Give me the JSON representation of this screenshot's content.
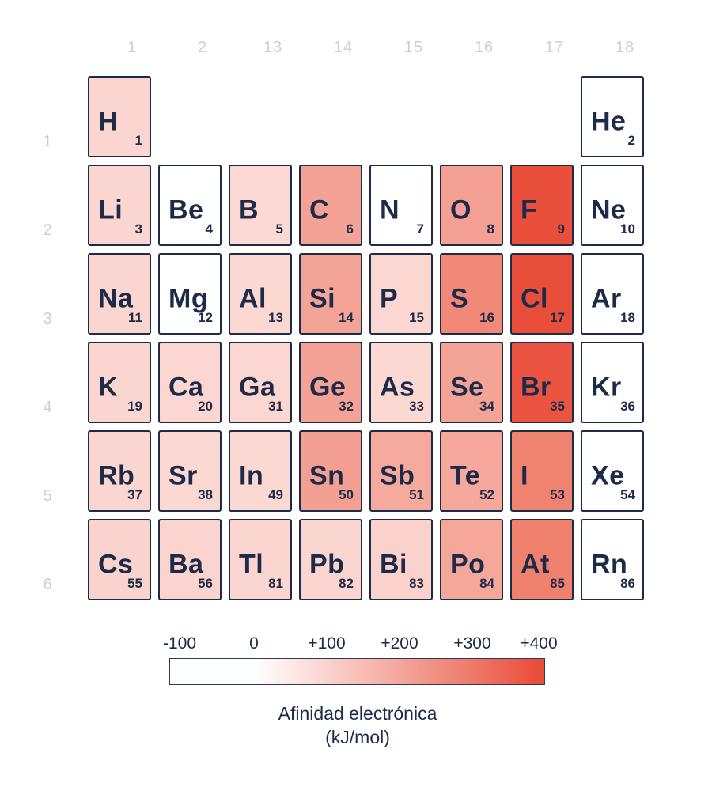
{
  "chart_data": {
    "type": "heatmap",
    "title": "Afinidad electrónica (kJ/mol)",
    "columns": [
      "1",
      "2",
      "13",
      "14",
      "15",
      "16",
      "17",
      "18"
    ],
    "rows": [
      "1",
      "2",
      "3",
      "4",
      "5",
      "6"
    ],
    "colorbar": {
      "tick_labels": [
        "-100",
        "0",
        "+100",
        "+200",
        "+300",
        "+400"
      ],
      "tick_values": [
        -100,
        0,
        100,
        200,
        300,
        400
      ],
      "min_color": "#ffffff",
      "max_color": "#e94e3a"
    },
    "cells": [
      {
        "symbol": "H",
        "atomic_number": "1",
        "period": 1,
        "group": "1",
        "color": "#fbd5d0",
        "value_est_kj_mol": 70
      },
      {
        "symbol": "He",
        "atomic_number": "2",
        "period": 1,
        "group": "18",
        "color": "#ffffff",
        "value_est_kj_mol": 0
      },
      {
        "symbol": "Li",
        "atomic_number": "3",
        "period": 2,
        "group": "1",
        "color": "#fbd5d0",
        "value_est_kj_mol": 60
      },
      {
        "symbol": "Be",
        "atomic_number": "4",
        "period": 2,
        "group": "2",
        "color": "#ffffff",
        "value_est_kj_mol": 0
      },
      {
        "symbol": "B",
        "atomic_number": "5",
        "period": 2,
        "group": "13",
        "color": "#fcd9d4",
        "value_est_kj_mol": 30
      },
      {
        "symbol": "C",
        "atomic_number": "6",
        "period": 2,
        "group": "14",
        "color": "#f4a296",
        "value_est_kj_mol": 120
      },
      {
        "symbol": "N",
        "atomic_number": "7",
        "period": 2,
        "group": "15",
        "color": "#ffffff",
        "value_est_kj_mol": 0
      },
      {
        "symbol": "O",
        "atomic_number": "8",
        "period": 2,
        "group": "16",
        "color": "#f4a095",
        "value_est_kj_mol": 140
      },
      {
        "symbol": "F",
        "atomic_number": "9",
        "period": 2,
        "group": "17",
        "color": "#e94f3b",
        "value_est_kj_mol": 330
      },
      {
        "symbol": "Ne",
        "atomic_number": "10",
        "period": 2,
        "group": "18",
        "color": "#ffffff",
        "value_est_kj_mol": 0
      },
      {
        "symbol": "Na",
        "atomic_number": "11",
        "period": 3,
        "group": "1",
        "color": "#fbd5d0",
        "value_est_kj_mol": 55
      },
      {
        "symbol": "Mg",
        "atomic_number": "12",
        "period": 3,
        "group": "2",
        "color": "#ffffff",
        "value_est_kj_mol": 0
      },
      {
        "symbol": "Al",
        "atomic_number": "13",
        "period": 3,
        "group": "13",
        "color": "#fcd8d3",
        "value_est_kj_mol": 40
      },
      {
        "symbol": "Si",
        "atomic_number": "14",
        "period": 3,
        "group": "14",
        "color": "#f4a397",
        "value_est_kj_mol": 130
      },
      {
        "symbol": "P",
        "atomic_number": "15",
        "period": 3,
        "group": "15",
        "color": "#fcd7d2",
        "value_est_kj_mol": 70
      },
      {
        "symbol": "S",
        "atomic_number": "16",
        "period": 3,
        "group": "16",
        "color": "#f28878",
        "value_est_kj_mol": 200
      },
      {
        "symbol": "Cl",
        "atomic_number": "17",
        "period": 3,
        "group": "17",
        "color": "#e94e3a",
        "value_est_kj_mol": 350
      },
      {
        "symbol": "Ar",
        "atomic_number": "18",
        "period": 3,
        "group": "18",
        "color": "#ffffff",
        "value_est_kj_mol": 0
      },
      {
        "symbol": "K",
        "atomic_number": "19",
        "period": 4,
        "group": "1",
        "color": "#fbd5d0",
        "value_est_kj_mol": 50
      },
      {
        "symbol": "Ca",
        "atomic_number": "20",
        "period": 4,
        "group": "2",
        "color": "#fcd7d2",
        "value_est_kj_mol": 5
      },
      {
        "symbol": "Ga",
        "atomic_number": "31",
        "period": 4,
        "group": "13",
        "color": "#fcd7d2",
        "value_est_kj_mol": 40
      },
      {
        "symbol": "Ge",
        "atomic_number": "32",
        "period": 4,
        "group": "14",
        "color": "#f3a295",
        "value_est_kj_mol": 120
      },
      {
        "symbol": "As",
        "atomic_number": "33",
        "period": 4,
        "group": "15",
        "color": "#fcd8d3",
        "value_est_kj_mol": 80
      },
      {
        "symbol": "Se",
        "atomic_number": "34",
        "period": 4,
        "group": "16",
        "color": "#f4a397",
        "value_est_kj_mol": 190
      },
      {
        "symbol": "Br",
        "atomic_number": "35",
        "period": 4,
        "group": "17",
        "color": "#ea5440",
        "value_est_kj_mol": 325
      },
      {
        "symbol": "Kr",
        "atomic_number": "36",
        "period": 4,
        "group": "18",
        "color": "#ffffff",
        "value_est_kj_mol": 0
      },
      {
        "symbol": "Rb",
        "atomic_number": "37",
        "period": 5,
        "group": "1",
        "color": "#fbd5d0",
        "value_est_kj_mol": 50
      },
      {
        "symbol": "Sr",
        "atomic_number": "38",
        "period": 5,
        "group": "2",
        "color": "#fcd8d3",
        "value_est_kj_mol": 5
      },
      {
        "symbol": "In",
        "atomic_number": "49",
        "period": 5,
        "group": "13",
        "color": "#fcd8d3",
        "value_est_kj_mol": 35
      },
      {
        "symbol": "Sn",
        "atomic_number": "50",
        "period": 5,
        "group": "14",
        "color": "#f3a093",
        "value_est_kj_mol": 110
      },
      {
        "symbol": "Sb",
        "atomic_number": "51",
        "period": 5,
        "group": "15",
        "color": "#f5aa9d",
        "value_est_kj_mol": 100
      },
      {
        "symbol": "Te",
        "atomic_number": "52",
        "period": 5,
        "group": "16",
        "color": "#f5a89b",
        "value_est_kj_mol": 190
      },
      {
        "symbol": "I",
        "atomic_number": "53",
        "period": 5,
        "group": "17",
        "color": "#f08270",
        "value_est_kj_mol": 295
      },
      {
        "symbol": "Xe",
        "atomic_number": "54",
        "period": 5,
        "group": "18",
        "color": "#ffffff",
        "value_est_kj_mol": 0
      },
      {
        "symbol": "Cs",
        "atomic_number": "55",
        "period": 6,
        "group": "1",
        "color": "#fbd3ce",
        "value_est_kj_mol": 45
      },
      {
        "symbol": "Ba",
        "atomic_number": "56",
        "period": 6,
        "group": "2",
        "color": "#fbd4cf",
        "value_est_kj_mol": 15
      },
      {
        "symbol": "Tl",
        "atomic_number": "81",
        "period": 6,
        "group": "13",
        "color": "#fbd5d0",
        "value_est_kj_mol": 35
      },
      {
        "symbol": "Pb",
        "atomic_number": "82",
        "period": 6,
        "group": "14",
        "color": "#fbd5d0",
        "value_est_kj_mol": 35
      },
      {
        "symbol": "Bi",
        "atomic_number": "83",
        "period": 6,
        "group": "15",
        "color": "#fbd1cb",
        "value_est_kj_mol": 90
      },
      {
        "symbol": "Po",
        "atomic_number": "84",
        "period": 6,
        "group": "16",
        "color": "#f5a79a",
        "value_est_kj_mol": 180
      },
      {
        "symbol": "At",
        "atomic_number": "85",
        "period": 6,
        "group": "17",
        "color": "#f0816f",
        "value_est_kj_mol": 270
      },
      {
        "symbol": "Rn",
        "atomic_number": "86",
        "period": 6,
        "group": "18",
        "color": "#ffffff",
        "value_est_kj_mol": 0
      }
    ]
  },
  "legend": {
    "ticks": [
      "-100",
      "0",
      "+100",
      "+200",
      "+300",
      "+400"
    ],
    "title_line1": "Afinidad electrónica",
    "title_line2": "(kJ/mol)"
  },
  "colors": {
    "ink": "#1e2b48",
    "muted_label": "#c9cfd8",
    "scale_start": "#ffffff",
    "scale_end": "#e94e3a"
  }
}
